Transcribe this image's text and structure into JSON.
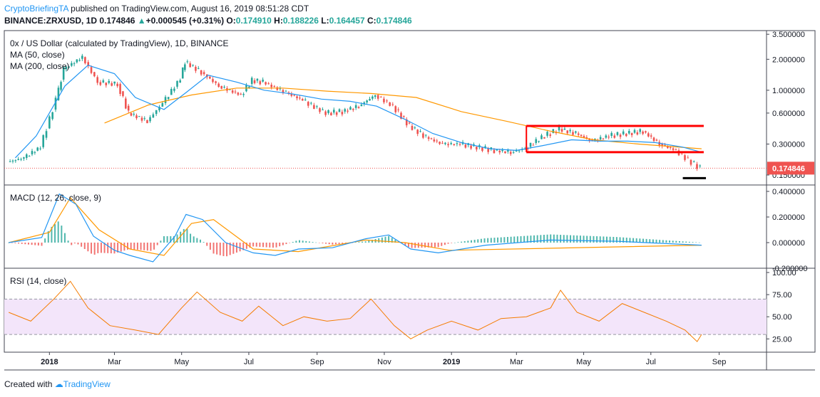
{
  "header": {
    "publisher": "CryptoBriefingTA",
    "published_text": " published on TradingView.com, August 16, 2019 08:51:28 CDT",
    "symbol": "BINANCE:ZRXUSD, 1D",
    "last": "0.174846",
    "change_arrow": "▲",
    "change": "+0.000545 (+0.31%)",
    "o_label": "O:",
    "o_value": "0.174910",
    "h_label": "H:",
    "h_value": "0.188226",
    "l_label": "L:",
    "l_value": "0.164457",
    "c_label": "C:",
    "c_value": "0.174846"
  },
  "footer": {
    "created_with": "Created with",
    "brand": "TradingView"
  },
  "colors": {
    "up": "#26a69a",
    "down": "#ef5350",
    "ma50": "#2196f3",
    "ma200": "#ff9800",
    "macd": "#2196f3",
    "signal": "#ff9800",
    "rsi": "#f57c00",
    "rsi_band": "#f3e5fa",
    "annotation": "#ff0000",
    "last_price": "#ef5350"
  },
  "chart_data": [
    {
      "type": "line",
      "title": "0x / US Dollar (calculated by TradingView), 1D, BINANCE",
      "series": [
        {
          "name": "MA (50, close)",
          "x": [
            "2017-12-01",
            "2017-12-20",
            "2018-01-15",
            "2018-02-05",
            "2018-03-01",
            "2018-03-20",
            "2018-04-15",
            "2018-05-05",
            "2018-05-25",
            "2018-06-20",
            "2018-07-15",
            "2018-08-10",
            "2018-09-05",
            "2018-10-01",
            "2018-10-25",
            "2018-11-20",
            "2018-12-15",
            "2019-01-10",
            "2019-02-05",
            "2019-03-01",
            "2019-03-25",
            "2019-04-20",
            "2019-05-15",
            "2019-06-10",
            "2019-07-05",
            "2019-07-30",
            "2019-08-16"
          ],
          "values": [
            0.22,
            0.36,
            1.1,
            1.75,
            1.45,
            0.85,
            0.65,
            0.95,
            1.4,
            1.2,
            1.0,
            0.92,
            0.82,
            0.78,
            0.7,
            0.52,
            0.38,
            0.31,
            0.27,
            0.26,
            0.29,
            0.33,
            0.32,
            0.32,
            0.31,
            0.28,
            0.25
          ]
        },
        {
          "name": "MA (200, close)",
          "x": [
            "2018-02-20",
            "2018-04-01",
            "2018-05-10",
            "2018-06-20",
            "2018-08-01",
            "2018-09-10",
            "2018-10-20",
            "2018-11-30",
            "2019-01-10",
            "2019-02-20",
            "2019-04-01",
            "2019-05-10",
            "2019-06-20",
            "2019-08-16"
          ],
          "values": [
            0.48,
            0.72,
            0.9,
            1.05,
            1.05,
            0.98,
            0.93,
            0.85,
            0.62,
            0.5,
            0.4,
            0.33,
            0.3,
            0.27
          ]
        },
        {
          "name": "0x / US Dollar",
          "x": [
            "2017-11-25",
            "2017-12-10",
            "2017-12-25",
            "2018-01-08",
            "2018-01-15",
            "2018-02-01",
            "2018-02-15",
            "2018-03-05",
            "2018-03-15",
            "2018-04-01",
            "2018-04-15",
            "2018-05-01",
            "2018-05-05",
            "2018-05-20",
            "2018-06-05",
            "2018-06-25",
            "2018-07-05",
            "2018-07-15",
            "2018-08-05",
            "2018-08-20",
            "2018-09-10",
            "2018-09-25",
            "2018-10-10",
            "2018-10-25",
            "2018-11-10",
            "2018-11-25",
            "2018-12-10",
            "2018-12-25",
            "2019-01-10",
            "2019-01-25",
            "2019-02-10",
            "2019-02-25",
            "2019-03-10",
            "2019-03-25",
            "2019-04-10",
            "2019-04-25",
            "2019-05-10",
            "2019-05-25",
            "2019-06-10",
            "2019-06-25",
            "2019-07-10",
            "2019-07-25",
            "2019-08-05",
            "2019-08-16"
          ],
          "values": [
            0.2,
            0.22,
            0.28,
            0.8,
            1.6,
            2.1,
            1.2,
            1.15,
            0.6,
            0.5,
            0.75,
            1.3,
            1.9,
            1.5,
            1.1,
            0.9,
            1.25,
            1.2,
            0.95,
            0.8,
            0.6,
            0.62,
            0.7,
            0.9,
            0.7,
            0.45,
            0.35,
            0.3,
            0.3,
            0.28,
            0.26,
            0.25,
            0.27,
            0.35,
            0.42,
            0.38,
            0.32,
            0.36,
            0.38,
            0.4,
            0.3,
            0.26,
            0.21,
            0.175
          ]
        }
      ],
      "y_ticks": [
        "3.500000",
        "2.000000",
        "1.000000",
        "0.600000",
        "0.300000",
        "0.150000"
      ],
      "last_price_label": "0.174846",
      "y_scale": "log",
      "ylim": [
        0.12,
        3.8
      ],
      "legend_items": [
        "MA (50, close)",
        "MA (200, close)"
      ],
      "annotations": [
        "red channel top ~0.45 (2019-03-10 to 2019-08-16)",
        "red channel bottom ~0.25",
        "black support line ~0.14"
      ]
    },
    {
      "type": "line",
      "title": "MACD (12, 26, close, 9)",
      "series": [
        {
          "name": "MACD",
          "x": [
            "2017-11-25",
            "2017-12-25",
            "2018-01-10",
            "2018-01-25",
            "2018-02-10",
            "2018-03-01",
            "2018-03-15",
            "2018-04-05",
            "2018-04-25",
            "2018-05-05",
            "2018-05-20",
            "2018-06-10",
            "2018-07-05",
            "2018-07-25",
            "2018-08-15",
            "2018-09-15",
            "2018-10-15",
            "2018-11-05",
            "2018-11-25",
            "2018-12-20",
            "2019-02-01",
            "2019-04-01",
            "2019-06-01",
            "2019-08-16"
          ],
          "values": [
            0.0,
            0.04,
            0.38,
            0.3,
            0.05,
            -0.06,
            -0.1,
            -0.15,
            0.05,
            0.22,
            0.18,
            0.0,
            -0.08,
            -0.1,
            -0.05,
            -0.04,
            0.03,
            0.06,
            -0.05,
            -0.08,
            -0.02,
            0.02,
            0.01,
            -0.02
          ]
        },
        {
          "name": "Signal",
          "x": [
            "2017-11-25",
            "2018-01-01",
            "2018-01-20",
            "2018-02-15",
            "2018-03-15",
            "2018-04-15",
            "2018-05-10",
            "2018-05-30",
            "2018-07-05",
            "2018-08-15",
            "2018-10-15",
            "2018-11-20",
            "2018-12-30",
            "2019-08-16"
          ],
          "values": [
            0.0,
            0.08,
            0.35,
            0.1,
            -0.05,
            -0.1,
            0.15,
            0.18,
            -0.05,
            -0.07,
            0.02,
            0.0,
            -0.06,
            -0.02
          ]
        }
      ],
      "y_ticks": [
        "0.400000",
        "0.200000",
        "0.000000",
        "-0.200000"
      ],
      "ylim": [
        -0.2,
        0.45
      ]
    },
    {
      "type": "line",
      "title": "RSI (14, close)",
      "series": [
        {
          "name": "RSI",
          "x": [
            "2017-11-25",
            "2017-12-15",
            "2018-01-05",
            "2018-01-20",
            "2018-02-05",
            "2018-02-25",
            "2018-03-20",
            "2018-04-10",
            "2018-05-01",
            "2018-05-15",
            "2018-06-05",
            "2018-06-25",
            "2018-07-10",
            "2018-08-01",
            "2018-08-20",
            "2018-09-10",
            "2018-10-01",
            "2018-10-20",
            "2018-11-10",
            "2018-11-25",
            "2018-12-10",
            "2019-01-01",
            "2019-01-25",
            "2019-02-15",
            "2019-03-10",
            "2019-04-01",
            "2019-04-10",
            "2019-04-25",
            "2019-05-15",
            "2019-06-05",
            "2019-06-25",
            "2019-07-15",
            "2019-08-01",
            "2019-08-12",
            "2019-08-16"
          ],
          "values": [
            55,
            45,
            70,
            90,
            60,
            40,
            35,
            30,
            60,
            78,
            55,
            45,
            62,
            40,
            50,
            45,
            48,
            70,
            40,
            25,
            35,
            45,
            35,
            48,
            50,
            60,
            80,
            55,
            45,
            65,
            55,
            45,
            35,
            22,
            30
          ]
        }
      ],
      "y_ticks": [
        "100.00",
        "75.00",
        "50.00",
        "25.00"
      ],
      "ylim": [
        10,
        100
      ],
      "band": [
        30,
        70
      ]
    }
  ],
  "x_axis_labels": [
    "2018",
    "Mar",
    "May",
    "Jul",
    "Sep",
    "Nov",
    "2019",
    "Mar",
    "May",
    "Jul",
    "Sep"
  ]
}
